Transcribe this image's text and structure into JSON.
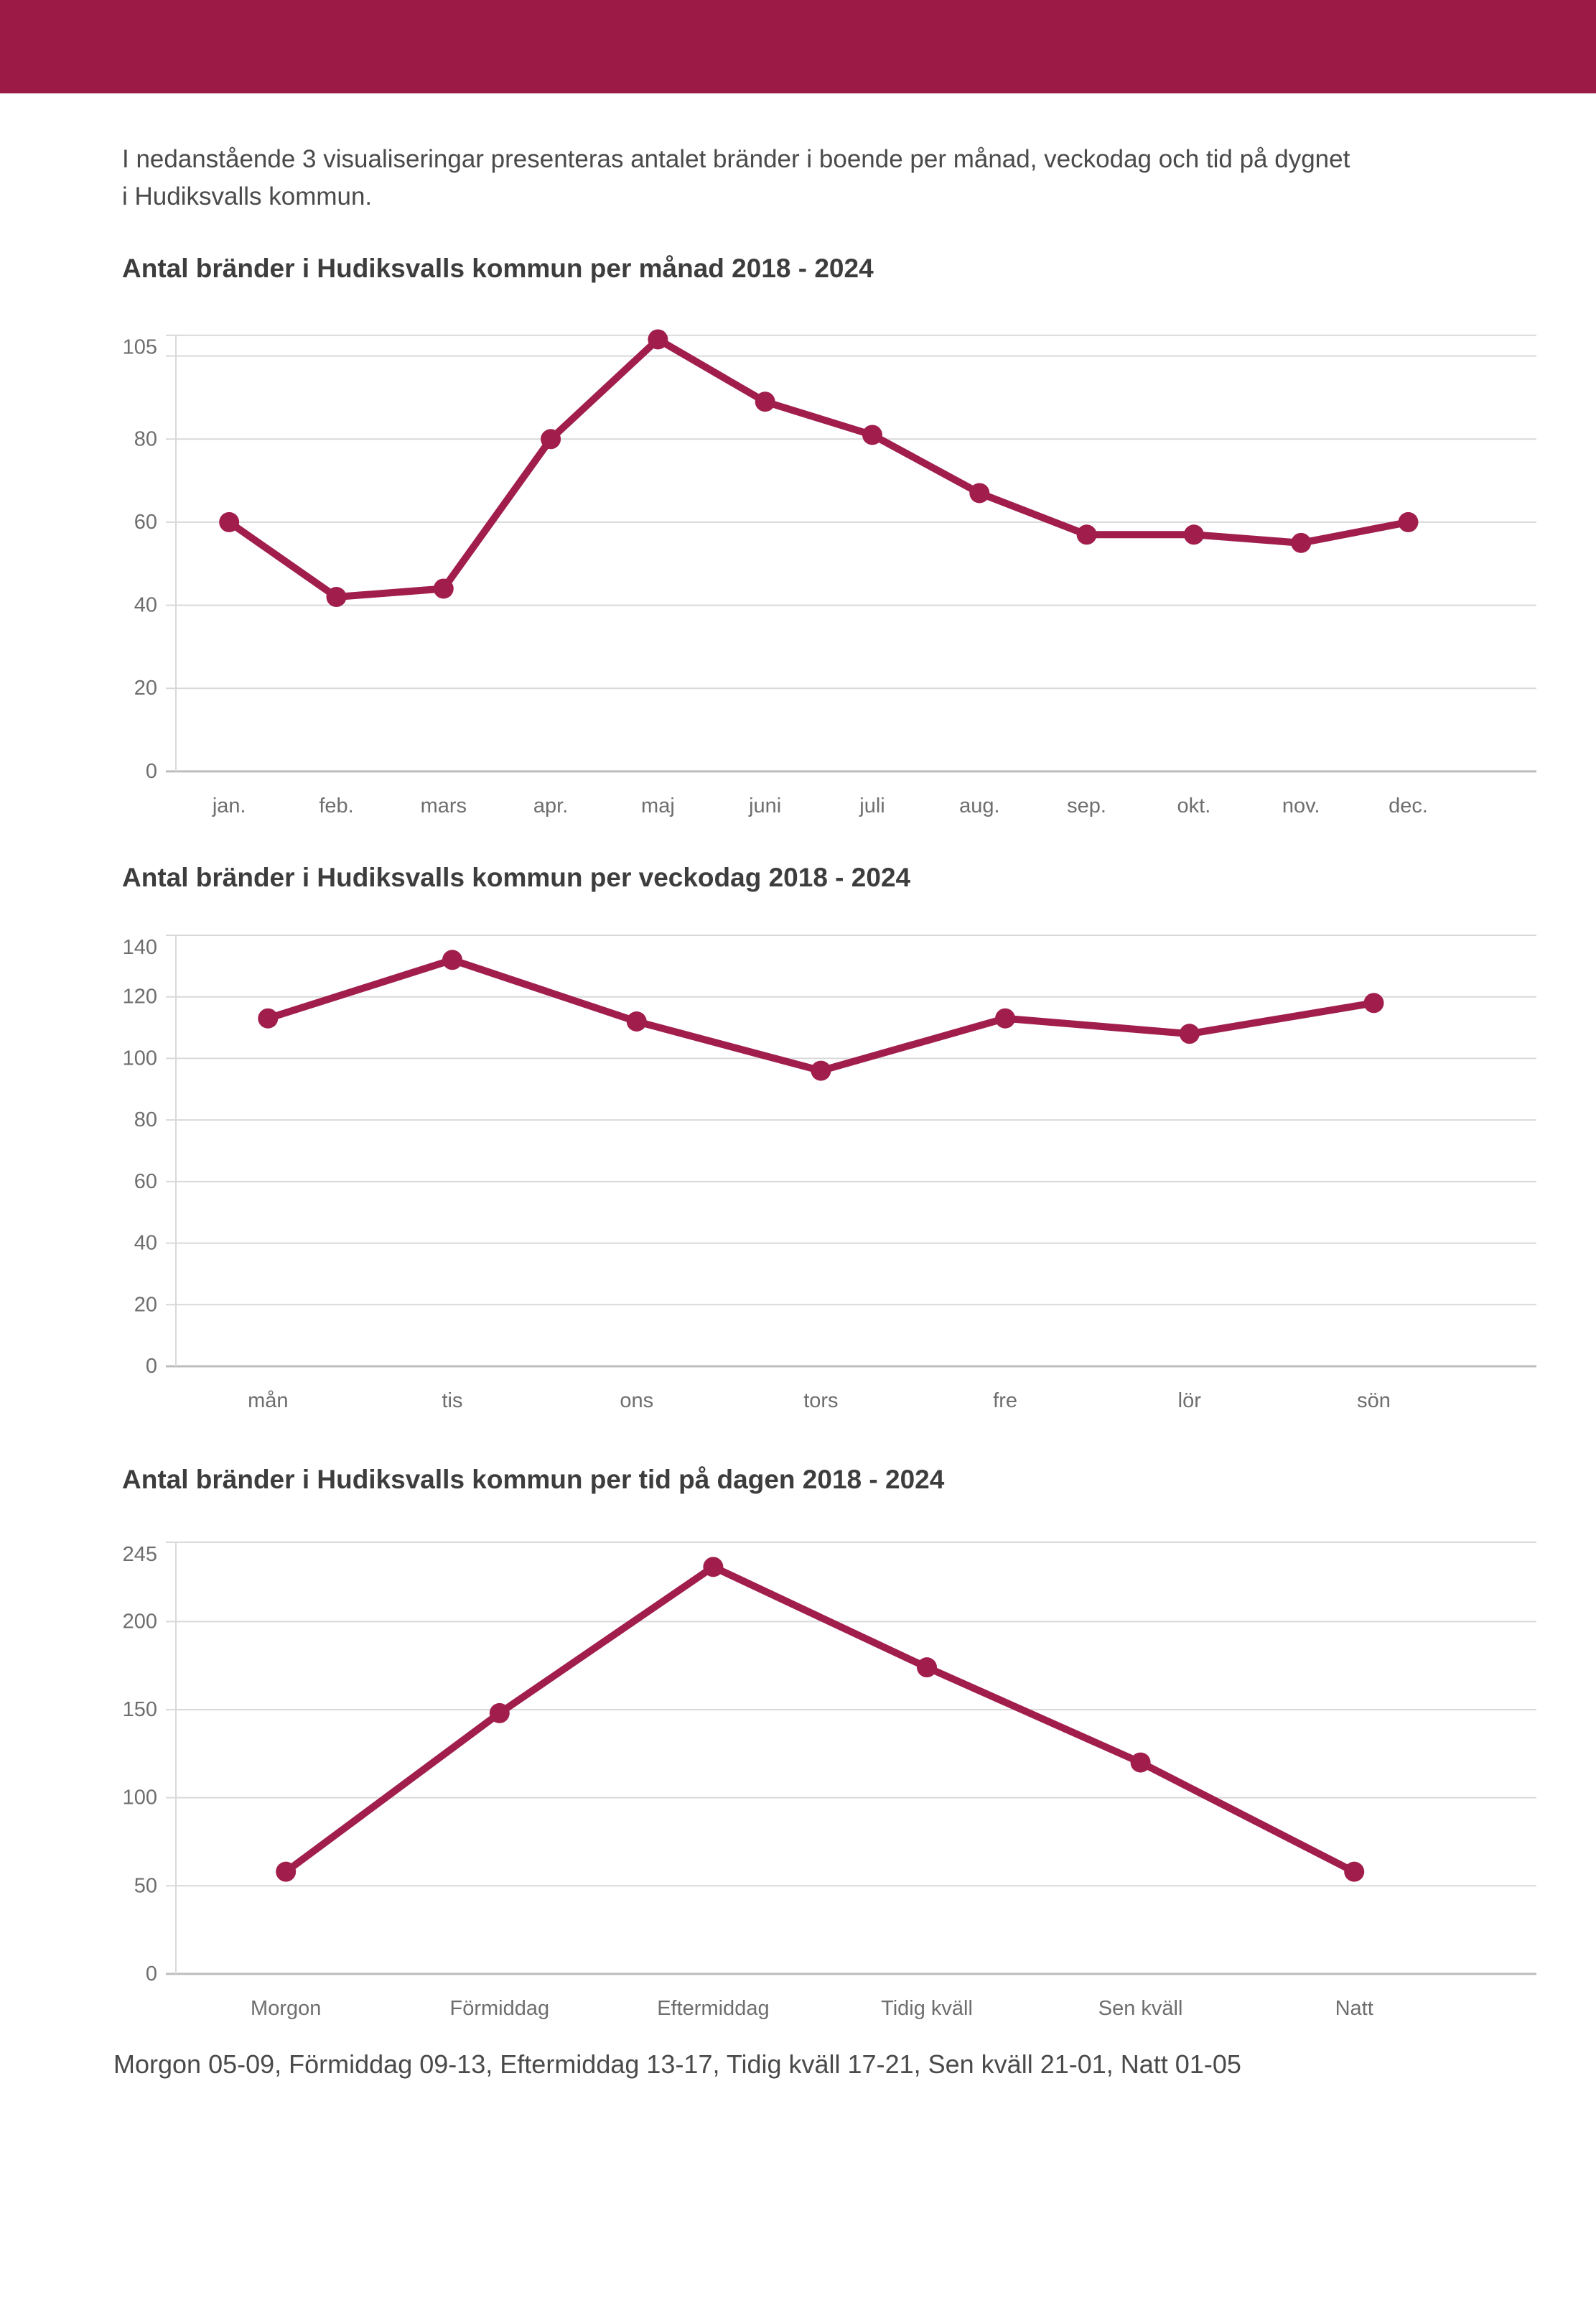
{
  "page": {
    "banner_color": "#9B1B46",
    "intro_line1": "I nedanstående 3 visualiseringar presenteras antalet bränder i boende per månad, veckodag och tid på dygnet",
    "intro_line2": "i Hudiksvalls kommun.",
    "footer_note": "Morgon 05-09, Förmiddag 09-13, Eftermiddag 13-17, Tidig kväll 17-21, Sen kväll 21-01, Natt 01-05"
  },
  "chart_data": [
    {
      "type": "line",
      "title": "Antal bränder i Hudiksvalls kommun per månad 2018 - 2024",
      "categories": [
        "jan.",
        "feb.",
        "mars",
        "apr.",
        "maj",
        "juni",
        "juli",
        "aug.",
        "sep.",
        "okt.",
        "nov.",
        "dec."
      ],
      "values": [
        60,
        42,
        44,
        80,
        104,
        89,
        81,
        67,
        57,
        57,
        55,
        60
      ],
      "ylim": [
        0,
        105
      ],
      "yticks": [
        0,
        20,
        40,
        60,
        80,
        105
      ],
      "ygridlines": [
        0,
        20,
        40,
        60,
        80,
        100,
        105
      ],
      "xlabel": "",
      "ylabel": "",
      "legend": "none",
      "grid": "horizontal",
      "color": "#A11E4C"
    },
    {
      "type": "line",
      "title": "Antal bränder i Hudiksvalls kommun per veckodag 2018 - 2024",
      "categories": [
        "mån",
        "tis",
        "ons",
        "tors",
        "fre",
        "lör",
        "sön"
      ],
      "values": [
        113,
        132,
        112,
        96,
        113,
        108,
        118
      ],
      "ylim": [
        0,
        140
      ],
      "yticks": [
        0,
        20,
        40,
        60,
        80,
        100,
        120,
        140
      ],
      "ygridlines": [
        0,
        20,
        40,
        60,
        80,
        100,
        120,
        140
      ],
      "xlabel": "",
      "ylabel": "",
      "legend": "none",
      "grid": "horizontal",
      "color": "#A11E4C"
    },
    {
      "type": "line",
      "title": "Antal bränder i Hudiksvalls kommun per tid på dagen 2018 - 2024",
      "categories": [
        "Morgon",
        "Förmiddag",
        "Eftermiddag",
        "Tidig kväll",
        "Sen kväll",
        "Natt"
      ],
      "values": [
        58,
        148,
        231,
        174,
        120,
        58
      ],
      "ylim": [
        0,
        245
      ],
      "yticks": [
        0,
        50,
        100,
        150,
        200,
        245
      ],
      "ygridlines": [
        0,
        50,
        100,
        150,
        200,
        245
      ],
      "xlabel": "",
      "ylabel": "",
      "legend": "none",
      "grid": "horizontal",
      "color": "#A11E4C"
    }
  ]
}
